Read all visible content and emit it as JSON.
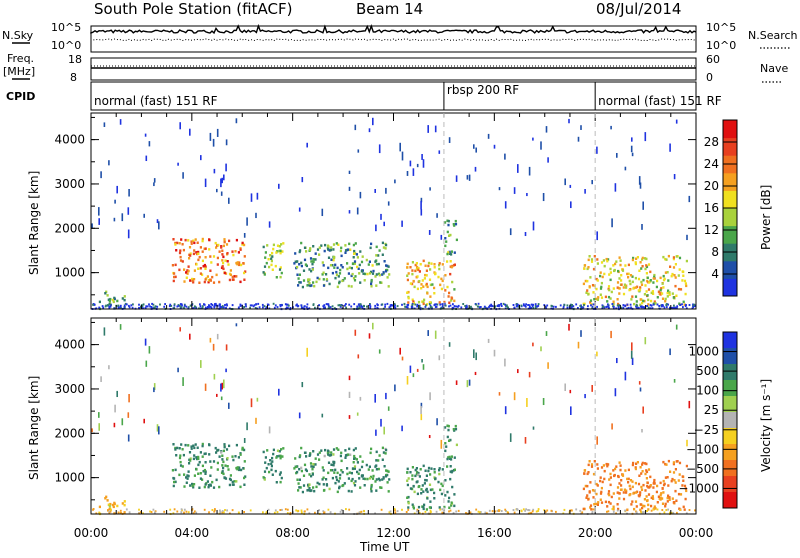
{
  "header": {
    "station": "South Pole Station (fitACF)",
    "beam": "Beam 14",
    "date": "08/Jul/2014"
  },
  "noise_panel": {
    "left_label": "N.Sky",
    "right_label": "N.Search",
    "left_ticks": [
      "10^5",
      "10^0"
    ],
    "right_ticks": [
      "10^5",
      "10^0"
    ]
  },
  "freq_panel": {
    "left_label_1": "Freq.",
    "left_label_2": "[MHz]",
    "right_label": "Nave",
    "left_ticks": [
      "18",
      "8"
    ],
    "right_ticks": [
      "60",
      "0"
    ]
  },
  "cpid": {
    "label": "CPID",
    "segments": [
      {
        "text": "normal (fast) 151 RF",
        "start_h": 0,
        "end_h": 14
      },
      {
        "text": "rbsp 200 RF",
        "start_h": 14,
        "end_h": 20
      },
      {
        "text": "normal (fast) 151 RF",
        "start_h": 20,
        "end_h": 24
      }
    ]
  },
  "axes": {
    "ylabel": "Slant Range [km]",
    "xlabel": "Time UT",
    "xticks": [
      "00:00",
      "04:00",
      "08:00",
      "12:00",
      "16:00",
      "20:00",
      "00:00"
    ],
    "yticks": [
      "1000",
      "2000",
      "3000",
      "4000"
    ]
  },
  "power_colorbar": {
    "label": "Power [dB]",
    "ticks": [
      "4",
      "8",
      "12",
      "16",
      "20",
      "24",
      "28"
    ],
    "colors": [
      "#1f33e0",
      "#1f4fa8",
      "#2f7a6a",
      "#4aa64a",
      "#a9d23c",
      "#f0e020",
      "#f5a020",
      "#f07020",
      "#e84020",
      "#e01010"
    ]
  },
  "velocity_colorbar": {
    "label": "Velocity [m s⁻¹]",
    "ticks": [
      "1000",
      "500",
      "100",
      "25",
      "−25",
      "−100",
      "−500",
      "−1000"
    ],
    "colors": [
      "#1f33e0",
      "#1f4fa8",
      "#2f7a6a",
      "#4aa64a",
      "#a0d050",
      "#b4b4b4",
      "#f5d020",
      "#f5a020",
      "#f07020",
      "#e84020",
      "#e01010"
    ]
  },
  "chart_data": {
    "type": "heatmap",
    "title": "South Pole Station (fitACF)",
    "x_range_h": [
      0,
      24
    ],
    "y_range_km": [
      180,
      4600
    ],
    "panels": [
      "power",
      "velocity"
    ],
    "scatter_regions": [
      {
        "t0": 3.2,
        "t1": 6.1,
        "r0": 800,
        "r1": 1800,
        "power": 22,
        "velocity": 100
      },
      {
        "t0": 6.8,
        "t1": 7.6,
        "r0": 900,
        "r1": 1700,
        "power": 12,
        "velocity": 100
      },
      {
        "t0": 8.0,
        "t1": 11.8,
        "r0": 700,
        "r1": 1700,
        "power": 8,
        "velocity": 100
      },
      {
        "t0": 12.5,
        "t1": 14.4,
        "r0": 300,
        "r1": 1300,
        "power": 18,
        "velocity": 100
      },
      {
        "t0": 14.0,
        "t1": 14.5,
        "r0": 1400,
        "r1": 2200,
        "power": 8,
        "velocity": 100
      },
      {
        "t0": 19.5,
        "t1": 23.6,
        "r0": 300,
        "r1": 1400,
        "power": 16,
        "velocity": -500
      },
      {
        "t0": 0.3,
        "t1": 1.3,
        "r0": 200,
        "r1": 600,
        "power": 8,
        "velocity": -100
      }
    ]
  }
}
